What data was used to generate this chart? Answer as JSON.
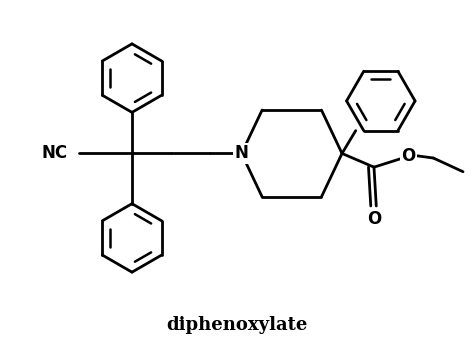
{
  "title": "diphenoxylate",
  "title_fontsize": 13,
  "title_fontweight": "bold",
  "background_color": "#ffffff",
  "line_color": "#000000",
  "line_width": 2.0,
  "figsize": [
    4.74,
    3.48
  ],
  "dpi": 100,
  "xlim": [
    0,
    10
  ],
  "ylim": [
    0,
    7.5
  ]
}
